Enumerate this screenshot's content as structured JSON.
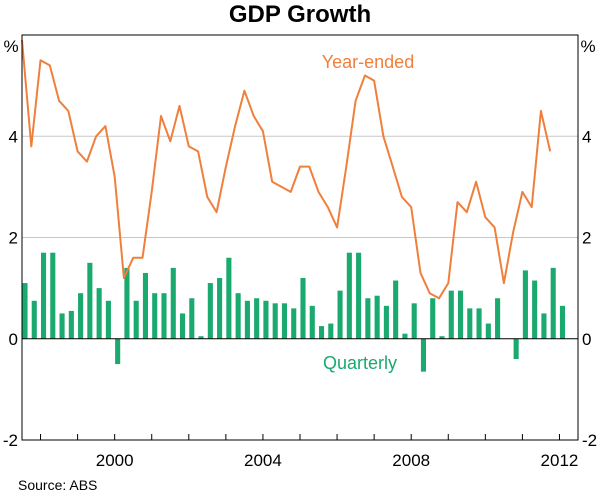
{
  "chart_data": {
    "type": "bar+line",
    "title": "GDP Growth",
    "unit_left": "%",
    "unit_right": "%",
    "source": "Source: ABS",
    "ylim": [
      -2,
      6
    ],
    "yticks": [
      -2,
      0,
      2,
      4
    ],
    "ytick_labels": [
      "-2",
      "0",
      "2",
      "4"
    ],
    "xticks": [
      2000,
      2004,
      2008,
      2012
    ],
    "xtick_labels": [
      "2000",
      "2004",
      "2008",
      "2012"
    ],
    "x_range": [
      1997.5,
      2012.5
    ],
    "grid": true,
    "colors": {
      "line": "#f07f3c",
      "bar": "#1aa96f",
      "grid": "#c8c8c8",
      "axis": "#000000"
    },
    "series": [
      {
        "name": "Year-ended",
        "kind": "line",
        "x": [
          1997.5,
          1997.75,
          1998,
          1998.25,
          1998.5,
          1998.75,
          1999,
          1999.25,
          1999.5,
          1999.75,
          2000,
          2000.25,
          2000.5,
          2000.75,
          2001,
          2001.25,
          2001.5,
          2001.75,
          2002,
          2002.25,
          2002.5,
          2002.75,
          2003,
          2003.25,
          2003.5,
          2003.75,
          2004,
          2004.25,
          2004.5,
          2004.75,
          2005,
          2005.25,
          2005.5,
          2005.75,
          2006,
          2006.25,
          2006.5,
          2006.75,
          2007,
          2007.25,
          2007.5,
          2007.75,
          2008,
          2008.25,
          2008.5,
          2008.75,
          2009,
          2009.25,
          2009.5,
          2009.75,
          2010,
          2010.25,
          2010.5,
          2010.75,
          2011,
          2011.25,
          2011.5,
          2011.75,
          2012
        ],
        "values": [
          5.9,
          3.8,
          5.5,
          5.4,
          4.7,
          4.5,
          3.7,
          3.5,
          4.0,
          4.2,
          3.2,
          1.2,
          1.6,
          1.6,
          2.9,
          4.4,
          3.9,
          4.6,
          3.8,
          3.7,
          2.8,
          2.5,
          3.4,
          4.2,
          4.9,
          4.4,
          4.1,
          3.1,
          3.0,
          2.9,
          3.4,
          3.4,
          2.9,
          2.6,
          2.2,
          3.4,
          4.7,
          5.2,
          5.1,
          4.0,
          3.4,
          2.8,
          2.6,
          1.3,
          0.9,
          0.8,
          1.1,
          2.7,
          2.5,
          3.1,
          2.4,
          2.2,
          1.1,
          2.1,
          2.9,
          2.6,
          4.5,
          3.7,
          null
        ]
      },
      {
        "name": "Quarterly",
        "kind": "bar",
        "x": [
          1997.5,
          1997.75,
          1998,
          1998.25,
          1998.5,
          1998.75,
          1999,
          1999.25,
          1999.5,
          1999.75,
          2000,
          2000.25,
          2000.5,
          2000.75,
          2001,
          2001.25,
          2001.5,
          2001.75,
          2002,
          2002.25,
          2002.5,
          2002.75,
          2003,
          2003.25,
          2003.5,
          2003.75,
          2004,
          2004.25,
          2004.5,
          2004.75,
          2005,
          2005.25,
          2005.5,
          2005.75,
          2006,
          2006.25,
          2006.5,
          2006.75,
          2007,
          2007.25,
          2007.5,
          2007.75,
          2008,
          2008.25,
          2008.5,
          2008.75,
          2009,
          2009.25,
          2009.5,
          2009.75,
          2010,
          2010.25,
          2010.5,
          2010.75,
          2011,
          2011.25,
          2011.5,
          2011.75,
          2012
        ],
        "values": [
          1.1,
          0.75,
          1.7,
          1.7,
          0.5,
          0.55,
          0.9,
          1.5,
          1.0,
          0.75,
          -0.5,
          1.4,
          0.75,
          1.3,
          0.9,
          0.9,
          1.4,
          0.5,
          0.8,
          0.05,
          1.1,
          1.2,
          1.6,
          0.9,
          0.75,
          0.8,
          0.75,
          0.7,
          0.7,
          0.6,
          1.2,
          0.65,
          0.25,
          0.3,
          0.95,
          1.7,
          1.7,
          0.8,
          0.85,
          0.65,
          1.15,
          0.1,
          0.7,
          -0.65,
          0.8,
          0.05,
          0.95,
          0.95,
          0.6,
          0.6,
          0.3,
          0.8,
          null,
          -0.4,
          1.35,
          1.15,
          0.5,
          1.4,
          0.65
        ]
      }
    ],
    "annotations": [
      {
        "text": "Year-ended",
        "series": "Year-ended"
      },
      {
        "text": "Quarterly",
        "series": "Quarterly"
      }
    ]
  }
}
